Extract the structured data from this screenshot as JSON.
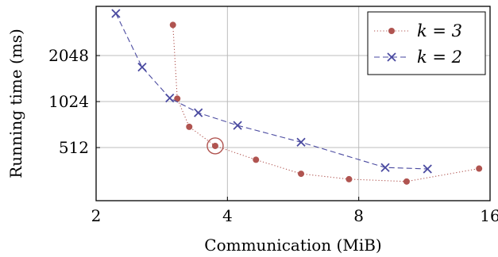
{
  "chart_data": {
    "type": "line",
    "xlabel": "Communication (MiB)",
    "ylabel": "Running time (ms)",
    "xscale": "log2",
    "yscale": "log2",
    "xlim": [
      2,
      16
    ],
    "ylim": [
      230,
      4300
    ],
    "xticks": [
      2,
      4,
      8,
      16
    ],
    "yticks": [
      512,
      1024,
      2048
    ],
    "grid": true,
    "legend_position": "top-right",
    "series": [
      {
        "name": "k = 3",
        "color": "#b05450",
        "line_style": "dotted",
        "marker": "circle",
        "x": [
          3.0,
          3.07,
          3.27,
          3.75,
          4.65,
          5.9,
          7.6,
          10.3,
          15.1
        ],
        "y": [
          3250,
          1070,
          700,
          525,
          426,
          345,
          318,
          307,
          373
        ]
      },
      {
        "name": "k = 2",
        "color": "#4a4aa0",
        "line_style": "dashed",
        "marker": "x",
        "x": [
          2.22,
          2.55,
          2.95,
          3.43,
          4.22,
          5.9,
          9.2,
          11.5
        ],
        "y": [
          3860,
          1720,
          1080,
          865,
          715,
          555,
          379,
          371
        ]
      }
    ],
    "highlight": {
      "series": "k = 3",
      "x": 3.75,
      "y": 525,
      "marker": "circle-outline"
    }
  },
  "legend": {
    "items": [
      {
        "label": "k = 3",
        "color": "#b05450"
      },
      {
        "label": "k = 2",
        "color": "#4a4aa0"
      }
    ]
  }
}
